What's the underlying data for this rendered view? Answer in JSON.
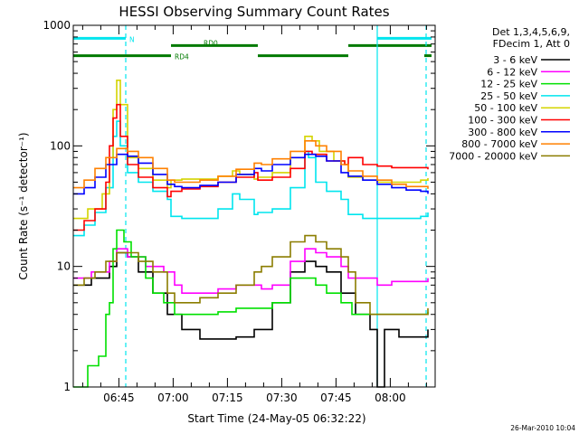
{
  "chart_data": {
    "type": "line",
    "title": "HESSI Observing Summary Count Rates",
    "xlabel": "Start Time (24-May-05 06:32:22)",
    "ylabel": "Count Rate (s⁻¹ detector⁻¹)",
    "yscale": "log",
    "ylim": [
      1,
      1000
    ],
    "xlim_minutes": [
      0,
      100
    ],
    "x_ticks": [
      {
        "label": "06:45",
        "min": 12.6
      },
      {
        "label": "07:00",
        "min": 27.6
      },
      {
        "label": "07:15",
        "min": 42.6
      },
      {
        "label": "07:30",
        "min": 57.6
      },
      {
        "label": "07:45",
        "min": 72.6
      },
      {
        "label": "08:00",
        "min": 87.6
      }
    ],
    "y_ticks": [
      {
        "label": "1",
        "value": 1
      },
      {
        "label": "10",
        "value": 10
      },
      {
        "label": "100",
        "value": 100
      },
      {
        "label": "1000",
        "value": 1000
      }
    ],
    "legend_header": [
      "Det 1,3,4,5,6,9,",
      "FDecim 1, Att 0"
    ],
    "legend_placement": "right",
    "footer": "26-Mar-2010 10:04",
    "flag_labels": {
      "n": "N",
      "rd0": "RD0",
      "rd4": "RD4"
    },
    "flags": {
      "n": {
        "color": "#00e5ee",
        "value": 780,
        "segments": [
          [
            0,
            14.5
          ],
          [
            84,
            99
          ]
        ]
      },
      "rd0": {
        "color": "#007a00",
        "value": 680,
        "segments": [
          [
            27,
            51
          ],
          [
            76,
            99
          ]
        ]
      },
      "rd4": {
        "color": "#007a00",
        "value": 560,
        "segments": [
          [
            0,
            27
          ],
          [
            51,
            76
          ],
          [
            97,
            99
          ]
        ]
      }
    },
    "dashed_markers": {
      "color": "#00e5ee",
      "x": [
        14.5,
        97.5
      ]
    },
    "solid_markers": {
      "color": "#00e5ee",
      "x": [
        84
      ]
    },
    "series": [
      {
        "name": "3 - 6 keV",
        "color": "#000000",
        "points": [
          [
            0,
            7
          ],
          [
            5,
            8
          ],
          [
            10,
            10
          ],
          [
            12,
            13
          ],
          [
            15,
            12
          ],
          [
            18,
            9
          ],
          [
            22,
            6
          ],
          [
            26,
            4
          ],
          [
            30,
            3
          ],
          [
            35,
            2.5
          ],
          [
            40,
            2.5
          ],
          [
            45,
            2.6
          ],
          [
            50,
            3
          ],
          [
            52,
            3
          ],
          [
            55,
            5
          ],
          [
            60,
            9
          ],
          [
            64,
            11
          ],
          [
            67,
            10
          ],
          [
            70,
            9
          ],
          [
            74,
            6
          ],
          [
            78,
            4
          ],
          [
            82,
            3
          ],
          [
            84,
            1
          ],
          [
            86,
            3
          ],
          [
            90,
            2.6
          ],
          [
            96,
            2.6
          ],
          [
            98,
            3
          ]
        ]
      },
      {
        "name": "6 - 12 keV",
        "color": "#ff00ff",
        "points": [
          [
            0,
            8
          ],
          [
            5,
            9
          ],
          [
            10,
            11
          ],
          [
            12,
            14
          ],
          [
            15,
            12
          ],
          [
            20,
            10
          ],
          [
            25,
            9
          ],
          [
            28,
            7
          ],
          [
            30,
            6
          ],
          [
            35,
            6
          ],
          [
            40,
            6.5
          ],
          [
            45,
            7
          ],
          [
            50,
            7
          ],
          [
            52,
            6.5
          ],
          [
            55,
            7
          ],
          [
            60,
            11
          ],
          [
            64,
            14
          ],
          [
            67,
            13
          ],
          [
            70,
            12
          ],
          [
            74,
            10
          ],
          [
            76,
            8
          ],
          [
            80,
            8
          ],
          [
            84,
            7
          ],
          [
            88,
            7.5
          ],
          [
            92,
            7.5
          ],
          [
            96,
            7.5
          ],
          [
            98,
            8
          ]
        ]
      },
      {
        "name": "12 - 25 keV",
        "color": "#00e000",
        "points": [
          [
            0,
            1
          ],
          [
            4,
            1.5
          ],
          [
            7,
            1.8
          ],
          [
            9,
            4
          ],
          [
            10,
            5
          ],
          [
            11,
            14
          ],
          [
            12,
            20
          ],
          [
            14,
            16
          ],
          [
            16,
            12
          ],
          [
            20,
            8
          ],
          [
            22,
            6
          ],
          [
            25,
            5
          ],
          [
            28,
            4
          ],
          [
            35,
            4
          ],
          [
            40,
            4.2
          ],
          [
            45,
            4.5
          ],
          [
            50,
            4.5
          ],
          [
            52,
            4.5
          ],
          [
            55,
            5
          ],
          [
            60,
            8
          ],
          [
            64,
            8
          ],
          [
            67,
            7
          ],
          [
            70,
            6
          ],
          [
            74,
            5
          ],
          [
            77,
            4
          ],
          [
            80,
            4
          ],
          [
            84,
            4
          ],
          [
            90,
            4
          ],
          [
            96,
            4
          ],
          [
            98,
            4.2
          ]
        ]
      },
      {
        "name": "25 - 50 keV",
        "color": "#00e5ee",
        "points": [
          [
            0,
            18
          ],
          [
            3,
            22
          ],
          [
            6,
            28
          ],
          [
            9,
            45
          ],
          [
            11,
            120
          ],
          [
            12,
            160
          ],
          [
            13,
            100
          ],
          [
            15,
            60
          ],
          [
            18,
            50
          ],
          [
            22,
            42
          ],
          [
            26,
            36
          ],
          [
            27,
            26
          ],
          [
            30,
            25
          ],
          [
            35,
            25
          ],
          [
            40,
            30
          ],
          [
            44,
            40
          ],
          [
            46,
            36
          ],
          [
            50,
            27
          ],
          [
            51,
            28
          ],
          [
            55,
            30
          ],
          [
            60,
            45
          ],
          [
            64,
            90
          ],
          [
            65,
            80
          ],
          [
            67,
            50
          ],
          [
            70,
            42
          ],
          [
            74,
            36
          ],
          [
            76,
            27
          ],
          [
            80,
            25
          ],
          [
            84,
            25
          ],
          [
            88,
            25
          ],
          [
            92,
            25
          ],
          [
            96,
            26
          ],
          [
            98,
            28
          ]
        ]
      },
      {
        "name": "50 - 100 keV",
        "color": "#d4d400",
        "points": [
          [
            0,
            25
          ],
          [
            4,
            30
          ],
          [
            8,
            40
          ],
          [
            10,
            80
          ],
          [
            11,
            200
          ],
          [
            12,
            350
          ],
          [
            13,
            220
          ],
          [
            15,
            80
          ],
          [
            18,
            65
          ],
          [
            22,
            52
          ],
          [
            26,
            45
          ],
          [
            27,
            52
          ],
          [
            30,
            53
          ],
          [
            35,
            53
          ],
          [
            40,
            56
          ],
          [
            44,
            62
          ],
          [
            46,
            58
          ],
          [
            50,
            53
          ],
          [
            51,
            55
          ],
          [
            55,
            60
          ],
          [
            60,
            80
          ],
          [
            64,
            120
          ],
          [
            66,
            110
          ],
          [
            68,
            90
          ],
          [
            72,
            75
          ],
          [
            75,
            70
          ],
          [
            76,
            55
          ],
          [
            80,
            52
          ],
          [
            84,
            50
          ],
          [
            88,
            50
          ],
          [
            92,
            50
          ],
          [
            96,
            52
          ],
          [
            98,
            54
          ]
        ]
      },
      {
        "name": "100 - 300 keV",
        "color": "#ff0000",
        "points": [
          [
            0,
            20
          ],
          [
            3,
            24
          ],
          [
            6,
            30
          ],
          [
            9,
            50
          ],
          [
            10,
            100
          ],
          [
            11,
            170
          ],
          [
            12,
            220
          ],
          [
            13,
            120
          ],
          [
            15,
            70
          ],
          [
            18,
            55
          ],
          [
            22,
            45
          ],
          [
            26,
            38
          ],
          [
            27,
            42
          ],
          [
            30,
            44
          ],
          [
            35,
            46
          ],
          [
            40,
            50
          ],
          [
            45,
            55
          ],
          [
            50,
            60
          ],
          [
            51,
            52
          ],
          [
            55,
            55
          ],
          [
            60,
            65
          ],
          [
            64,
            90
          ],
          [
            66,
            85
          ],
          [
            70,
            75
          ],
          [
            75,
            70
          ],
          [
            76,
            80
          ],
          [
            80,
            70
          ],
          [
            84,
            68
          ],
          [
            88,
            66
          ],
          [
            92,
            66
          ],
          [
            96,
            66
          ],
          [
            98,
            64
          ]
        ]
      },
      {
        "name": "300 - 800 keV",
        "color": "#0000ff",
        "points": [
          [
            0,
            40
          ],
          [
            3,
            45
          ],
          [
            6,
            55
          ],
          [
            9,
            70
          ],
          [
            12,
            85
          ],
          [
            15,
            82
          ],
          [
            18,
            72
          ],
          [
            22,
            58
          ],
          [
            26,
            48
          ],
          [
            28,
            46
          ],
          [
            30,
            45
          ],
          [
            35,
            47
          ],
          [
            40,
            50
          ],
          [
            45,
            58
          ],
          [
            50,
            65
          ],
          [
            52,
            62
          ],
          [
            55,
            70
          ],
          [
            60,
            80
          ],
          [
            64,
            85
          ],
          [
            67,
            82
          ],
          [
            70,
            75
          ],
          [
            74,
            60
          ],
          [
            76,
            56
          ],
          [
            80,
            52
          ],
          [
            84,
            48
          ],
          [
            88,
            45
          ],
          [
            92,
            43
          ],
          [
            96,
            42
          ],
          [
            98,
            40
          ]
        ]
      },
      {
        "name": "800 - 7000 keV",
        "color": "#ff8000",
        "points": [
          [
            0,
            45
          ],
          [
            3,
            52
          ],
          [
            6,
            65
          ],
          [
            9,
            80
          ],
          [
            12,
            95
          ],
          [
            15,
            90
          ],
          [
            18,
            80
          ],
          [
            22,
            65
          ],
          [
            26,
            52
          ],
          [
            28,
            50
          ],
          [
            30,
            50
          ],
          [
            35,
            52
          ],
          [
            40,
            56
          ],
          [
            45,
            64
          ],
          [
            50,
            72
          ],
          [
            52,
            70
          ],
          [
            55,
            78
          ],
          [
            60,
            90
          ],
          [
            64,
            110
          ],
          [
            67,
            100
          ],
          [
            70,
            90
          ],
          [
            74,
            70
          ],
          [
            76,
            62
          ],
          [
            80,
            56
          ],
          [
            84,
            52
          ],
          [
            88,
            48
          ],
          [
            92,
            46
          ],
          [
            96,
            46
          ],
          [
            98,
            44
          ]
        ]
      },
      {
        "name": "7000 - 20000 keV",
        "color": "#8b7d00",
        "points": [
          [
            0,
            7
          ],
          [
            3,
            8
          ],
          [
            6,
            9
          ],
          [
            9,
            11
          ],
          [
            12,
            13
          ],
          [
            15,
            13
          ],
          [
            18,
            11
          ],
          [
            22,
            9
          ],
          [
            26,
            6
          ],
          [
            28,
            5
          ],
          [
            30,
            5
          ],
          [
            35,
            5.5
          ],
          [
            40,
            6
          ],
          [
            45,
            7
          ],
          [
            50,
            9
          ],
          [
            52,
            10
          ],
          [
            55,
            12
          ],
          [
            60,
            16
          ],
          [
            64,
            18
          ],
          [
            67,
            16
          ],
          [
            70,
            14
          ],
          [
            74,
            12
          ],
          [
            76,
            9
          ],
          [
            78,
            5
          ],
          [
            82,
            4
          ],
          [
            86,
            4
          ],
          [
            90,
            4
          ],
          [
            96,
            4
          ],
          [
            98,
            4.5
          ]
        ]
      }
    ]
  }
}
